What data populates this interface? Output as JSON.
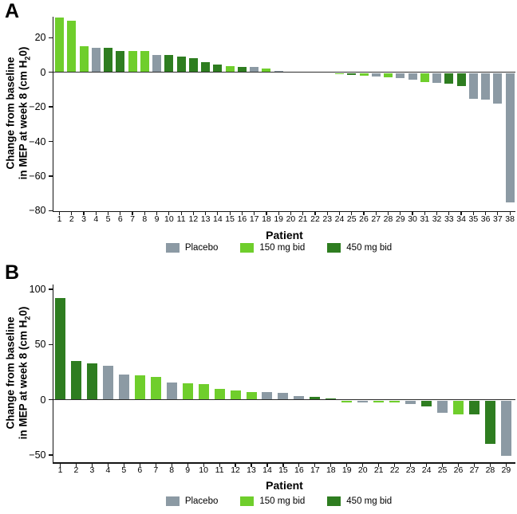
{
  "figure": {
    "panel_a_label": "A",
    "panel_b_label": "B",
    "ylabel_line1": "Change from baseline",
    "ylabel_line2_pre": "in MEP at week 8 (cm H",
    "ylabel_sub": "2",
    "ylabel_line2_post": "0)",
    "xlabel": "Patient"
  },
  "legend": {
    "items": [
      {
        "label": "Placebo",
        "color": "#8C9AA4"
      },
      {
        "label": "150 mg bid",
        "color": "#6FCE2C"
      },
      {
        "label": "450 mg bid",
        "color": "#2E7D20"
      }
    ]
  },
  "chart_data": [
    {
      "type": "bar",
      "panel": "A",
      "title": "",
      "xlabel": "Patient",
      "ylabel": "Change from baseline in MEP at week 8 (cm H20)",
      "ylim": [
        -80,
        32
      ],
      "yticks": [
        20,
        0,
        -20,
        -40,
        -60,
        -80
      ],
      "legend_position": "bottom",
      "legend_entries": [
        "Placebo",
        "150 mg bid",
        "450 mg bid"
      ],
      "points": [
        {
          "patient": 1,
          "value": 31.5,
          "group": "150 mg bid"
        },
        {
          "patient": 2,
          "value": 30,
          "group": "150 mg bid"
        },
        {
          "patient": 3,
          "value": 15,
          "group": "150 mg bid"
        },
        {
          "patient": 4,
          "value": 14,
          "group": "Placebo"
        },
        {
          "patient": 5,
          "value": 14,
          "group": "450 mg bid"
        },
        {
          "patient": 6,
          "value": 12.5,
          "group": "450 mg bid"
        },
        {
          "patient": 7,
          "value": 12.5,
          "group": "150 mg bid"
        },
        {
          "patient": 8,
          "value": 12.5,
          "group": "150 mg bid"
        },
        {
          "patient": 9,
          "value": 10,
          "group": "Placebo"
        },
        {
          "patient": 10,
          "value": 10,
          "group": "450 mg bid"
        },
        {
          "patient": 11,
          "value": 9,
          "group": "450 mg bid"
        },
        {
          "patient": 12,
          "value": 8,
          "group": "450 mg bid"
        },
        {
          "patient": 13,
          "value": 6,
          "group": "450 mg bid"
        },
        {
          "patient": 14,
          "value": 4.5,
          "group": "450 mg bid"
        },
        {
          "patient": 15,
          "value": 3.5,
          "group": "150 mg bid"
        },
        {
          "patient": 16,
          "value": 3,
          "group": "450 mg bid"
        },
        {
          "patient": 17,
          "value": 3,
          "group": "Placebo"
        },
        {
          "patient": 18,
          "value": 2,
          "group": "150 mg bid"
        },
        {
          "patient": 19,
          "value": 1,
          "group": "Placebo"
        },
        {
          "patient": 20,
          "value": 0,
          "group": null
        },
        {
          "patient": 21,
          "value": 0,
          "group": null
        },
        {
          "patient": 22,
          "value": 0,
          "group": null
        },
        {
          "patient": 23,
          "value": 0,
          "group": null
        },
        {
          "patient": 24,
          "value": -1,
          "group": "150 mg bid"
        },
        {
          "patient": 25,
          "value": -1.5,
          "group": "450 mg bid"
        },
        {
          "patient": 26,
          "value": -2,
          "group": "150 mg bid"
        },
        {
          "patient": 27,
          "value": -2.5,
          "group": "Placebo"
        },
        {
          "patient": 28,
          "value": -3,
          "group": "150 mg bid"
        },
        {
          "patient": 29,
          "value": -3.5,
          "group": "Placebo"
        },
        {
          "patient": 30,
          "value": -4.5,
          "group": "Placebo"
        },
        {
          "patient": 31,
          "value": -5.5,
          "group": "150 mg bid"
        },
        {
          "patient": 32,
          "value": -6,
          "group": "Placebo"
        },
        {
          "patient": 33,
          "value": -6.5,
          "group": "450 mg bid"
        },
        {
          "patient": 34,
          "value": -8,
          "group": "450 mg bid"
        },
        {
          "patient": 35,
          "value": -15.5,
          "group": "Placebo"
        },
        {
          "patient": 36,
          "value": -16,
          "group": "Placebo"
        },
        {
          "patient": 37,
          "value": -18,
          "group": "Placebo"
        },
        {
          "patient": 38,
          "value": -75,
          "group": "Placebo"
        }
      ]
    },
    {
      "type": "bar",
      "panel": "B",
      "title": "",
      "xlabel": "Patient",
      "ylabel": "Change from baseline in MEP at week 8 (cm H20)",
      "ylim": [
        -56,
        104
      ],
      "yticks": [
        100,
        50,
        0,
        -50
      ],
      "legend_position": "bottom",
      "legend_entries": [
        "Placebo",
        "150 mg bid",
        "450 mg bid"
      ],
      "points": [
        {
          "patient": 1,
          "value": 92,
          "group": "450 mg bid"
        },
        {
          "patient": 2,
          "value": 35,
          "group": "450 mg bid"
        },
        {
          "patient": 3,
          "value": 33,
          "group": "450 mg bid"
        },
        {
          "patient": 4,
          "value": 31,
          "group": "Placebo"
        },
        {
          "patient": 5,
          "value": 23,
          "group": "Placebo"
        },
        {
          "patient": 6,
          "value": 22,
          "group": "150 mg bid"
        },
        {
          "patient": 7,
          "value": 21,
          "group": "150 mg bid"
        },
        {
          "patient": 8,
          "value": 16,
          "group": "Placebo"
        },
        {
          "patient": 9,
          "value": 15,
          "group": "150 mg bid"
        },
        {
          "patient": 10,
          "value": 14,
          "group": "150 mg bid"
        },
        {
          "patient": 11,
          "value": 10,
          "group": "150 mg bid"
        },
        {
          "patient": 12,
          "value": 8.5,
          "group": "150 mg bid"
        },
        {
          "patient": 13,
          "value": 7,
          "group": "150 mg bid"
        },
        {
          "patient": 14,
          "value": 7,
          "group": "Placebo"
        },
        {
          "patient": 15,
          "value": 6.5,
          "group": "Placebo"
        },
        {
          "patient": 16,
          "value": 3.5,
          "group": "Placebo"
        },
        {
          "patient": 17,
          "value": 3,
          "group": "450 mg bid"
        },
        {
          "patient": 18,
          "value": 1,
          "group": "450 mg bid"
        },
        {
          "patient": 19,
          "value": -2.5,
          "group": "150 mg bid"
        },
        {
          "patient": 20,
          "value": -2.5,
          "group": "Placebo"
        },
        {
          "patient": 21,
          "value": -2.5,
          "group": "150 mg bid"
        },
        {
          "patient": 22,
          "value": -2.5,
          "group": "150 mg bid"
        },
        {
          "patient": 23,
          "value": -3.5,
          "group": "Placebo"
        },
        {
          "patient": 24,
          "value": -6,
          "group": "450 mg bid"
        },
        {
          "patient": 25,
          "value": -12,
          "group": "Placebo"
        },
        {
          "patient": 26,
          "value": -13,
          "group": "150 mg bid"
        },
        {
          "patient": 27,
          "value": -13.5,
          "group": "450 mg bid"
        },
        {
          "patient": 28,
          "value": -40,
          "group": "450 mg bid"
        },
        {
          "patient": 29,
          "value": -51,
          "group": "Placebo"
        }
      ]
    }
  ]
}
